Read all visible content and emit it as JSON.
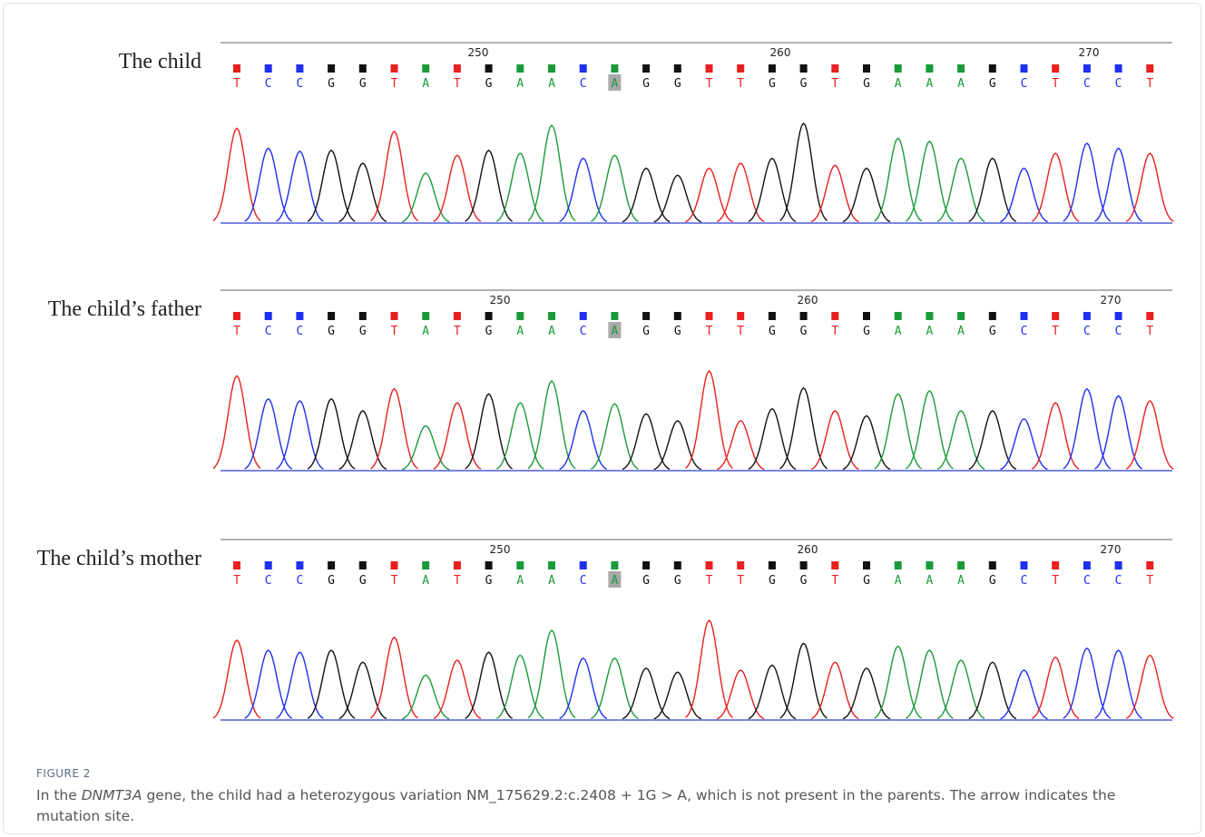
{
  "figure": {
    "panels": [
      {
        "label": "The child",
        "positions": [
          250,
          260,
          270
        ],
        "bases": [
          "T",
          "C",
          "C",
          "G",
          "G",
          "T",
          "A",
          "T",
          "G",
          "A",
          "A",
          "C",
          "A",
          "G",
          "G",
          "T",
          "T",
          "G",
          "G",
          "T",
          "G",
          "A",
          "A",
          "A",
          "G",
          "C",
          "T",
          "C",
          "C",
          "T"
        ]
      },
      {
        "label": "The child’s father",
        "positions": [
          250,
          260,
          270
        ],
        "bases": [
          "T",
          "C",
          "C",
          "G",
          "G",
          "T",
          "A",
          "T",
          "G",
          "A",
          "A",
          "C",
          "A",
          "G",
          "G",
          "T",
          "T",
          "G",
          "G",
          "T",
          "G",
          "A",
          "A",
          "A",
          "G",
          "C",
          "T",
          "C",
          "C",
          "T"
        ]
      },
      {
        "label": "The child’s mother",
        "positions": [
          250,
          260,
          270
        ],
        "bases": [
          "T",
          "C",
          "C",
          "G",
          "G",
          "T",
          "A",
          "T",
          "G",
          "A",
          "A",
          "C",
          "A",
          "G",
          "G",
          "T",
          "T",
          "G",
          "G",
          "T",
          "G",
          "A",
          "A",
          "A",
          "G",
          "C",
          "T",
          "C",
          "C",
          "T"
        ]
      }
    ],
    "number": "FIGURE 2",
    "caption": [
      "In the ",
      "DNMT3A",
      " gene, the child had a heterozygous variation NM_175629.2:c.2408 + 1G > A, which is not present in the parents. The arrow indicates the mutation site."
    ]
  }
}
